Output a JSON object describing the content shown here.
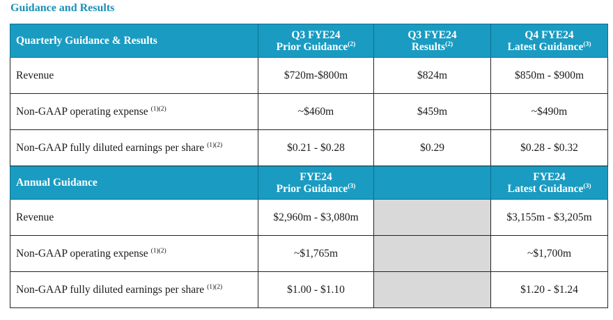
{
  "section_title": "Guidance and Results",
  "quarterly": {
    "header_label": "Quarterly Guidance & Results",
    "columns": [
      {
        "line1": "Q3 FYE24",
        "line2": "Prior Guidance",
        "note": "(2)"
      },
      {
        "line1": "Q3 FYE24",
        "line2": "Results",
        "note": "(2)"
      },
      {
        "line1": "Q4 FYE24",
        "line2": "Latest Guidance",
        "note": "(3)"
      }
    ],
    "rows": [
      {
        "label": "Revenue",
        "note": "",
        "values": [
          "$720m-$800m",
          "$824m",
          "$850m - $900m"
        ]
      },
      {
        "label": "Non-GAAP operating expense",
        "note": "(1)(2)",
        "values": [
          "~$460m",
          "$459m",
          "~$490m"
        ]
      },
      {
        "label": "Non-GAAP fully diluted earnings per share",
        "note": "(1)(2)",
        "values": [
          "$0.21 - $0.28",
          "$0.29",
          "$0.28 - $0.32"
        ]
      }
    ]
  },
  "annual": {
    "header_label": "Annual Guidance",
    "columns": [
      {
        "line1": "FYE24",
        "line2": "Prior Guidance",
        "note": "(3)"
      },
      {
        "line1": "",
        "line2": "",
        "note": ""
      },
      {
        "line1": "FYE24",
        "line2": "Latest Guidance",
        "note": "(3)"
      }
    ],
    "rows": [
      {
        "label": "Revenue",
        "note": "",
        "values": [
          "$2,960m - $3,080m",
          "",
          "$3,155m - $3,205m"
        ]
      },
      {
        "label": "Non-GAAP operating expense",
        "note": "(1)(2)",
        "values": [
          "~$1,765m",
          "",
          "~$1,700m"
        ]
      },
      {
        "label": "Non-GAAP fully diluted earnings per share",
        "note": "(1)(2)",
        "values": [
          "$1.00 - $1.10",
          "",
          "$1.20 - $1.24"
        ]
      }
    ]
  },
  "colors": {
    "header_bg": "#1a9bc1",
    "title": "#1a8fb5",
    "gray_cell": "#d9d9d9"
  }
}
